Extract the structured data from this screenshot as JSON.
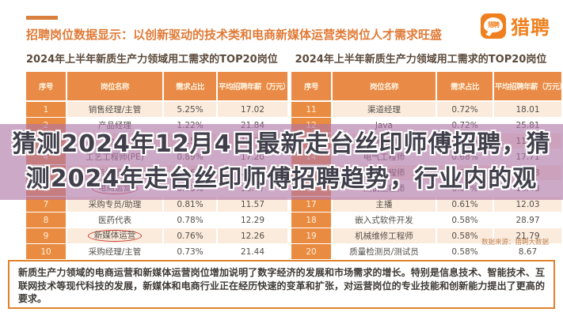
{
  "header": {
    "headline": "招聘岗位数据显示：以创新驱动的技术类和电商新媒体运营类岗位人才需求旺盛",
    "logo_bubble": "猎聘",
    "logo_text": "猎聘"
  },
  "chart_data": [
    {
      "type": "table",
      "title": "2024年上半年新质生产力领域用工需求的TOP20岗位",
      "columns": [
        "序号",
        "岗位名称",
        "需求占比",
        "平均招聘年薪（万元）"
      ],
      "rows": [
        {
          "no": "1",
          "name": "销售经理/主管",
          "share": "5.25%",
          "salary": "17.02",
          "circled": false
        },
        {
          "no": "2",
          "name": "产品经理",
          "share": "1.22%",
          "salary": "21.84",
          "circled": false
        },
        {
          "no": "3",
          "name": "会计",
          "share": "1.15%",
          "salary": "10.71",
          "circled": false
        },
        {
          "no": "4",
          "name": "工艺工程师(PE)",
          "share": "0.89%",
          "salary": "17.20",
          "circled": false
        },
        {
          "no": "5",
          "name": "财务经理/主管",
          "share": "0.86%",
          "salary": "20.45",
          "circled": false
        },
        {
          "no": "6",
          "name": "电商运营",
          "share": "0.83%",
          "salary": "13.77",
          "circled": true
        },
        {
          "no": "7",
          "name": "采购专员/助理",
          "share": "0.81%",
          "salary": "11.57",
          "circled": false
        },
        {
          "no": "8",
          "name": "医药代表",
          "share": "0.78%",
          "salary": "12.29",
          "circled": false
        },
        {
          "no": "9",
          "name": "新媒体运营",
          "share": "0.76%",
          "salary": "12.26",
          "circled": true
        },
        {
          "no": "10",
          "name": "采购经理/主管",
          "share": "0.73%",
          "salary": "21.44",
          "circled": false
        }
      ]
    },
    {
      "type": "table",
      "title": "2024年上半年新质生产力领域用工需求的TOP20岗位",
      "columns": [
        "序号",
        "岗位名称",
        "需求占比",
        "平均招聘年薪（万元）"
      ],
      "rows": [
        {
          "no": "11",
          "name": "渠道经理",
          "share": "0.72%",
          "salary": "18.01",
          "circled": false
        },
        {
          "no": "12",
          "name": "Java",
          "share": "0.72%",
          "salary": "25.81",
          "circled": false
        },
        {
          "no": "13",
          "name": "销售专员",
          "share": "0.70%",
          "salary": "11.11",
          "circled": false
        },
        {
          "no": "14",
          "name": "电气工程师",
          "share": "0.68%",
          "salary": "17.71",
          "circled": false
        },
        {
          "no": "15",
          "name": "算法工程师",
          "share": "0.65%",
          "salary": "44.08",
          "circled": false
        },
        {
          "no": "16",
          "name": "测试工程师",
          "share": "0.63%",
          "salary": "18.48",
          "circled": false
        },
        {
          "no": "17",
          "name": "主播",
          "share": "0.61%",
          "salary": "12.03",
          "circled": false
        },
        {
          "no": "18",
          "name": "嵌入式软件开发",
          "share": "0.58%",
          "salary": "28.97",
          "circled": false
        },
        {
          "no": "19",
          "name": "机械维修工程师",
          "share": "0.58%",
          "salary": "21.79",
          "circled": false
        },
        {
          "no": "20",
          "name": "质量检测员/测试员",
          "share": "0.58%",
          "salary": "8.67",
          "circled": false
        }
      ]
    }
  ],
  "source_note": "数据来源：猎聘大数据",
  "overlay": {
    "line1": "猜测2024年12月4日最新走台丝印师傅招聘，猜",
    "line2": "测2024年走台丝印师傅招聘趋势，行业内的观"
  },
  "footer": {
    "text": "新质生产力领域的电商运营和新媒体运营岗位增加说明了数字经济的发展和市场需求的增长。特别是信息技术、智能技术、互联网技术等现代科技的发展，新媒体和电商行业正在经历快速的变革和扩张，对运营岗位的专业技能和创新能力提出了更高的要求。"
  },
  "colors": {
    "accent_orange": "#E0812C",
    "headline_orange": "#E07A36",
    "table_header_bg": "#E98A47",
    "index_column_bg": "#EA8B42",
    "row_alt_bg": "#FBEBDD",
    "circle_red": "#C43B2F",
    "overlay_purple": "rgba(174,116,166,0.62)",
    "overlay_text": "#413F4B",
    "logo_orange": "#F0801F"
  }
}
